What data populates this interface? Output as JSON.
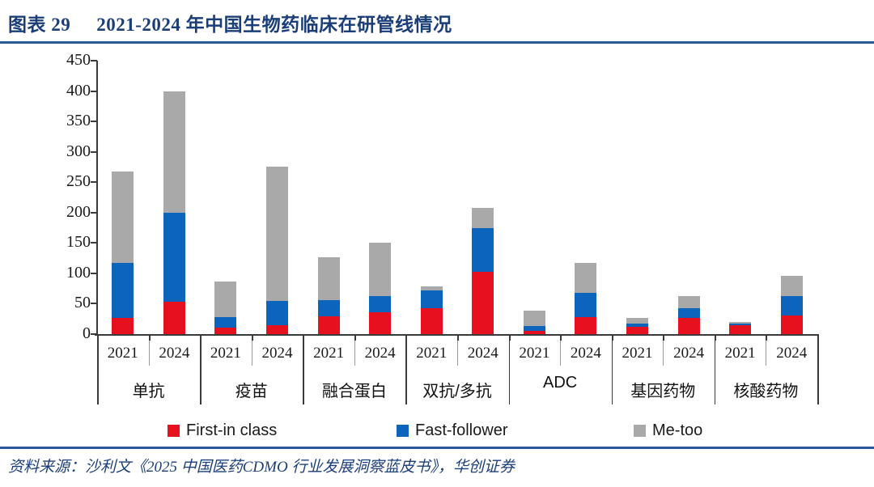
{
  "figure": {
    "label": "图表 29",
    "title": "2021-2024 年中国生物药临床在研管线情况",
    "source": "资料来源：沙利文《2025 中国医药CDMO 行业发展洞察蓝皮书》，华创证券"
  },
  "colors": {
    "title_navy": "#1b3e78",
    "rule_blue": "#2d5796",
    "axis_dark": "#3a3a3a",
    "first_in_class_red": "#e6101f",
    "fast_follower_blue": "#0c64bd",
    "me_too_gray": "#a9a9a9"
  },
  "chart_data": {
    "type": "bar",
    "stacked": true,
    "title": "",
    "xlabel": "",
    "ylabel": "",
    "ylim": [
      0,
      450
    ],
    "yticks": [
      0,
      50,
      100,
      150,
      200,
      250,
      300,
      350,
      400,
      450
    ],
    "grid": false,
    "legend_position": "bottom",
    "categories": [
      "单抗",
      "疫苗",
      "融合蛋白",
      "双抗/多抗",
      "ADC",
      "基因药物",
      "核酸药物"
    ],
    "x_sublabels": [
      "2021",
      "2024"
    ],
    "series": [
      {
        "name": "First-in class",
        "color": "#e6101f",
        "values": [
          [
            27,
            53
          ],
          [
            11,
            14
          ],
          [
            29,
            36
          ],
          [
            42,
            103
          ],
          [
            5,
            28
          ],
          [
            12,
            27
          ],
          [
            14,
            30
          ]
        ]
      },
      {
        "name": "Fast-follower",
        "color": "#0c64bd",
        "values": [
          [
            90,
            147
          ],
          [
            17,
            41
          ],
          [
            27,
            26
          ],
          [
            30,
            72
          ],
          [
            8,
            40
          ],
          [
            5,
            16
          ],
          [
            3,
            33
          ]
        ]
      },
      {
        "name": "Me-too",
        "color": "#a9a9a9",
        "values": [
          [
            150,
            200
          ],
          [
            59,
            220
          ],
          [
            70,
            88
          ],
          [
            7,
            33
          ],
          [
            25,
            49
          ],
          [
            10,
            20
          ],
          [
            3,
            33
          ]
        ]
      }
    ],
    "stacked_totals": [
      [
        267,
        400
      ],
      [
        87,
        275
      ],
      [
        126,
        150
      ],
      [
        79,
        208
      ],
      [
        38,
        117
      ],
      [
        27,
        63
      ],
      [
        20,
        96
      ]
    ]
  }
}
